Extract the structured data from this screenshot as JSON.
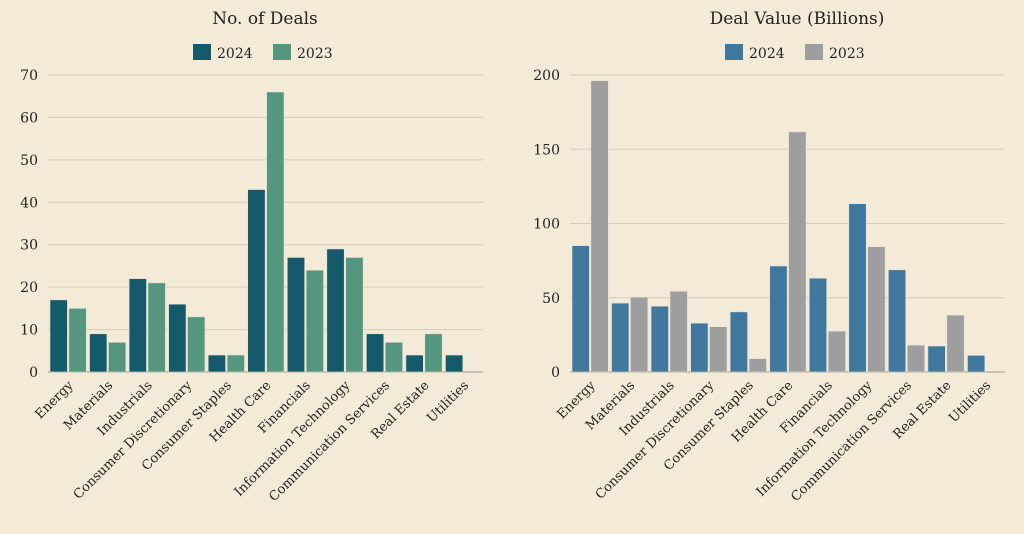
{
  "chart_data": [
    {
      "type": "bar",
      "title": "No. of Deals",
      "categories": [
        "Energy",
        "Materials",
        "Industrials",
        "Consumer Discretionary",
        "Consumer Staples",
        "Health Care",
        "Financials",
        "Information Technology",
        "Communication Services",
        "Real Estate",
        "Utilities"
      ],
      "series": [
        {
          "name": "2024",
          "color": "#155a6a",
          "values": [
            17,
            9,
            22,
            16,
            4,
            43,
            27,
            29,
            9,
            4,
            4
          ]
        },
        {
          "name": "2023",
          "color": "#55967f",
          "values": [
            15,
            7,
            21,
            13,
            4,
            66,
            24,
            27,
            7,
            9,
            null
          ]
        }
      ],
      "ylim": [
        0,
        70
      ],
      "yticks": [
        0,
        10,
        20,
        30,
        40,
        50,
        60,
        70
      ],
      "grid": true,
      "legend": "top-center"
    },
    {
      "type": "bar",
      "title": "Deal Value (Billions)",
      "categories": [
        "Energy",
        "Materials",
        "Industrials",
        "Consumer Discretionary",
        "Consumer Staples",
        "Health Care",
        "Financials",
        "Information Technology",
        "Communication Services",
        "Real Estate",
        "Utilities"
      ],
      "series": [
        {
          "name": "2024",
          "color": "#3f789c",
          "values": [
            85.1,
            46.4,
            44.3,
            32.9,
            40.5,
            71.4,
            63.2,
            113.3,
            68.8,
            17.5,
            11.2
          ]
        },
        {
          "name": "2023",
          "color": "#9e9e9e",
          "values": [
            196.2,
            50.4,
            54.4,
            30.5,
            9.0,
            161.7,
            27.5,
            84.4,
            18.1,
            38.3,
            null
          ]
        }
      ],
      "ylim": [
        0,
        200
      ],
      "yticks": [
        0,
        50,
        100,
        150,
        200
      ],
      "grid": true,
      "legend": "top-center"
    }
  ]
}
